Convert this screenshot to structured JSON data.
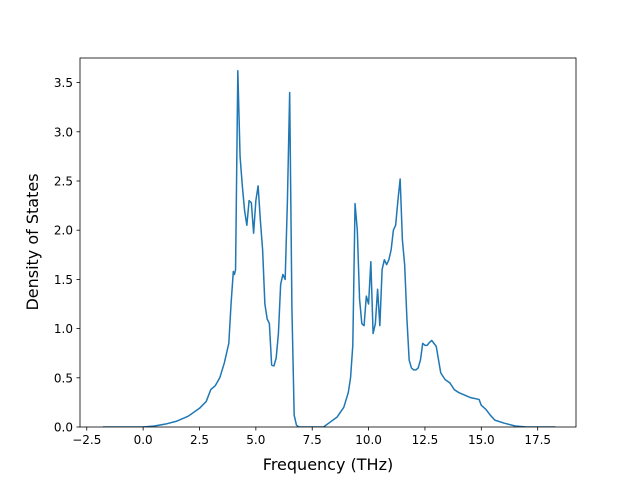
{
  "chart_data": {
    "type": "line",
    "title": "",
    "xlabel": "Frequency (THz)",
    "ylabel": "Density of States",
    "xlim": [
      -2.8,
      19.2
    ],
    "ylim": [
      0,
      3.75
    ],
    "xticks": [
      -2.5,
      0.0,
      2.5,
      5.0,
      7.5,
      10.0,
      12.5,
      15.0,
      17.5
    ],
    "xtick_labels": [
      "−2.5",
      "0.0",
      "2.5",
      "5.0",
      "7.5",
      "10.0",
      "12.5",
      "15.0",
      "17.5"
    ],
    "yticks": [
      0.0,
      0.5,
      1.0,
      1.5,
      2.0,
      2.5,
      3.0,
      3.5
    ],
    "ytick_labels": [
      "0.0",
      "0.5",
      "1.0",
      "1.5",
      "2.0",
      "2.5",
      "3.0",
      "3.5"
    ],
    "grid": false,
    "legend": null,
    "colors": {
      "line": "#1f77b4",
      "axes": "#000000",
      "background": "#ffffff"
    },
    "series": [
      {
        "x": [
          -1.75,
          -1.0,
          0.0,
          0.5,
          1.0,
          1.5,
          2.0,
          2.5,
          2.8,
          3.0,
          3.2,
          3.4,
          3.6,
          3.8,
          3.9,
          4.0,
          4.05,
          4.1,
          4.2,
          4.3,
          4.4,
          4.5,
          4.6,
          4.7,
          4.8,
          4.9,
          5.0,
          5.1,
          5.2,
          5.3,
          5.4,
          5.5,
          5.6,
          5.7,
          5.8,
          5.9,
          6.0,
          6.1,
          6.2,
          6.3,
          6.4,
          6.5,
          6.6,
          6.7,
          6.8,
          6.9,
          7.0,
          7.5,
          8.0,
          8.3,
          8.6,
          8.9,
          9.1,
          9.2,
          9.3,
          9.4,
          9.5,
          9.6,
          9.7,
          9.8,
          9.9,
          10.0,
          10.1,
          10.2,
          10.3,
          10.4,
          10.5,
          10.6,
          10.7,
          10.8,
          10.9,
          11.0,
          11.1,
          11.2,
          11.3,
          11.4,
          11.5,
          11.6,
          11.7,
          11.8,
          11.9,
          12.0,
          12.1,
          12.2,
          12.3,
          12.4,
          12.5,
          12.6,
          12.7,
          12.8,
          12.9,
          13.0,
          13.2,
          13.4,
          13.6,
          13.8,
          14.0,
          14.5,
          14.9,
          15.0,
          15.2,
          15.4,
          15.6,
          16.0,
          16.5,
          17.0,
          17.5,
          18.25
        ],
        "y": [
          0.0,
          0.0,
          0.0,
          0.01,
          0.03,
          0.06,
          0.11,
          0.19,
          0.26,
          0.38,
          0.42,
          0.5,
          0.65,
          0.85,
          1.25,
          1.58,
          1.55,
          1.6,
          3.62,
          2.75,
          2.45,
          2.2,
          2.05,
          2.3,
          2.28,
          1.97,
          2.3,
          2.45,
          2.1,
          1.8,
          1.25,
          1.1,
          1.05,
          0.63,
          0.62,
          0.7,
          0.95,
          1.45,
          1.55,
          1.5,
          2.3,
          3.4,
          1.2,
          0.12,
          0.02,
          0.0,
          0.0,
          0.0,
          0.0,
          0.05,
          0.1,
          0.2,
          0.35,
          0.5,
          0.83,
          2.27,
          2.0,
          1.3,
          1.05,
          1.03,
          1.33,
          1.25,
          1.68,
          0.95,
          1.05,
          1.4,
          1.03,
          1.6,
          1.7,
          1.65,
          1.7,
          1.8,
          2.0,
          2.05,
          2.3,
          2.52,
          1.9,
          1.65,
          1.1,
          0.68,
          0.6,
          0.58,
          0.58,
          0.6,
          0.68,
          0.85,
          0.83,
          0.83,
          0.86,
          0.88,
          0.85,
          0.82,
          0.55,
          0.48,
          0.45,
          0.38,
          0.35,
          0.3,
          0.28,
          0.22,
          0.18,
          0.12,
          0.07,
          0.04,
          0.01,
          0.0,
          0.0,
          0.0
        ]
      }
    ]
  }
}
